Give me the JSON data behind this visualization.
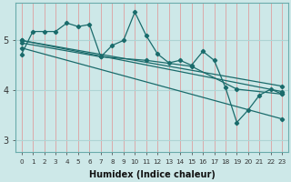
{
  "xlabel": "Humidex (Indice chaleur)",
  "xlim": [
    -0.5,
    23.5
  ],
  "ylim": [
    2.75,
    5.75
  ],
  "xticks": [
    0,
    1,
    2,
    3,
    4,
    5,
    6,
    7,
    8,
    9,
    10,
    11,
    12,
    13,
    14,
    15,
    16,
    17,
    18,
    19,
    20,
    21,
    22,
    23
  ],
  "yticks": [
    3,
    4,
    5
  ],
  "bg_color": "#cde8e8",
  "grid_color_v": "#dda0a0",
  "grid_color_h": "#aed4d4",
  "line_color": "#1a6b6b",
  "lines": [
    [
      [
        0,
        4.72
      ],
      [
        1,
        5.18
      ],
      [
        2,
        5.18
      ],
      [
        3,
        5.18
      ],
      [
        4,
        5.35
      ],
      [
        5,
        5.28
      ],
      [
        6,
        5.32
      ],
      [
        7,
        4.67
      ],
      [
        8,
        4.9
      ],
      [
        9,
        5.0
      ],
      [
        10,
        5.57
      ],
      [
        11,
        5.1
      ],
      [
        12,
        4.73
      ],
      [
        13,
        4.55
      ],
      [
        14,
        4.6
      ],
      [
        15,
        4.5
      ],
      [
        16,
        4.78
      ],
      [
        17,
        4.6
      ],
      [
        18,
        4.05
      ],
      [
        19,
        3.35
      ],
      [
        20,
        3.6
      ],
      [
        21,
        3.9
      ],
      [
        22,
        4.02
      ],
      [
        23,
        3.92
      ]
    ],
    [
      [
        0,
        4.95
      ],
      [
        7,
        4.67
      ],
      [
        11,
        4.6
      ],
      [
        15,
        4.48
      ],
      [
        19,
        4.02
      ],
      [
        23,
        3.92
      ]
    ],
    [
      [
        0,
        5.0
      ],
      [
        23,
        3.97
      ]
    ],
    [
      [
        0,
        5.0
      ],
      [
        23,
        4.08
      ]
    ],
    [
      [
        0,
        4.85
      ],
      [
        23,
        3.42
      ]
    ]
  ]
}
